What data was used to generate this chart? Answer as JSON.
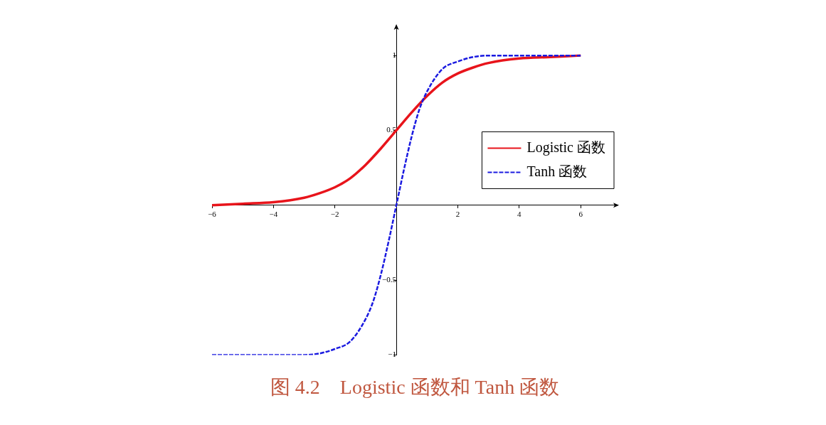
{
  "chart_data": {
    "type": "line",
    "title": "图 4.2　Logistic 函数和 Tanh 函数",
    "xlim": [
      -6,
      7.2
    ],
    "ylim": [
      -1,
      1.2
    ],
    "xticks": [
      {
        "value": -6,
        "label": "−6"
      },
      {
        "value": -4,
        "label": "−4"
      },
      {
        "value": -2,
        "label": "−2"
      },
      2,
      4,
      6
    ],
    "yticks": [
      {
        "value": -1,
        "label": "−1"
      },
      {
        "value": -0.5,
        "label": "−0.5"
      },
      0.5,
      1
    ],
    "grid": false,
    "legend": "right",
    "marker": "none",
    "series": [
      {
        "name": "Logistic 函数",
        "color": "#e8141b",
        "line_style": "solid",
        "x": [
          -6,
          -5,
          -4,
          -3,
          -2.5,
          -2,
          -1.5,
          -1,
          -0.5,
          0,
          0.5,
          1,
          1.5,
          2,
          2.5,
          3,
          4,
          5,
          6
        ],
        "values": [
          0.0,
          0.01,
          0.02,
          0.05,
          0.08,
          0.12,
          0.18,
          0.27,
          0.38,
          0.5,
          0.62,
          0.73,
          0.82,
          0.88,
          0.92,
          0.95,
          0.98,
          0.99,
          1.0
        ]
      },
      {
        "name": "Tanh 函数",
        "color": "#1a1ae0",
        "line_style": "dashed",
        "x": [
          -6,
          -4,
          -3,
          -2.5,
          -2,
          -1.5,
          -1,
          -0.75,
          -0.5,
          -0.25,
          0,
          0.25,
          0.5,
          0.75,
          1,
          1.5,
          2,
          2.5,
          3,
          4,
          6
        ],
        "values": [
          -1,
          -1,
          -1,
          -0.99,
          -0.96,
          -0.91,
          -0.76,
          -0.64,
          -0.46,
          -0.24,
          0,
          0.24,
          0.46,
          0.64,
          0.76,
          0.91,
          0.96,
          0.99,
          1,
          1,
          1
        ]
      }
    ]
  }
}
